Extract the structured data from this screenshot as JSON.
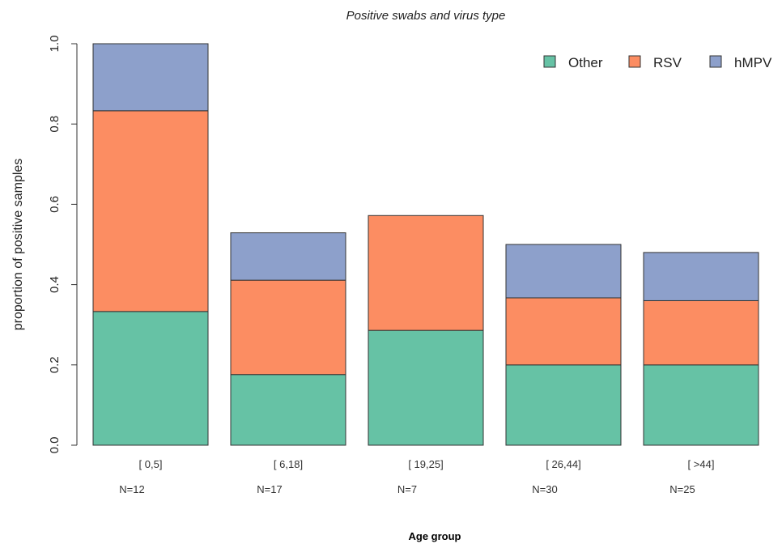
{
  "chart_data": {
    "type": "bar",
    "stacked": true,
    "title": "Positive swabs and virus type",
    "xlabel": "Age group",
    "ylabel": "proportion of positive samples",
    "ylim": [
      0,
      1.0
    ],
    "yticks": [
      "0.0",
      "0.2",
      "0.4",
      "0.6",
      "0.8",
      "1.0"
    ],
    "categories": [
      "[ 0,5]",
      "[ 6,18]",
      "[ 19,25]",
      "[ 26,44]",
      "[ >44]"
    ],
    "sample_sizes": [
      "N=12",
      "N=17",
      "N=7",
      "N=30",
      "N=25"
    ],
    "series": [
      {
        "name": "Other",
        "color": "#66c2a5",
        "values": [
          0.333,
          0.176,
          0.286,
          0.2,
          0.2
        ]
      },
      {
        "name": "RSV",
        "color": "#fc8d62",
        "values": [
          0.5,
          0.235,
          0.286,
          0.167,
          0.16
        ]
      },
      {
        "name": "hMPV",
        "color": "#8da0cb",
        "values": [
          0.167,
          0.118,
          0.0,
          0.133,
          0.12
        ]
      }
    ],
    "legend_position": "top-right",
    "grid": false
  }
}
